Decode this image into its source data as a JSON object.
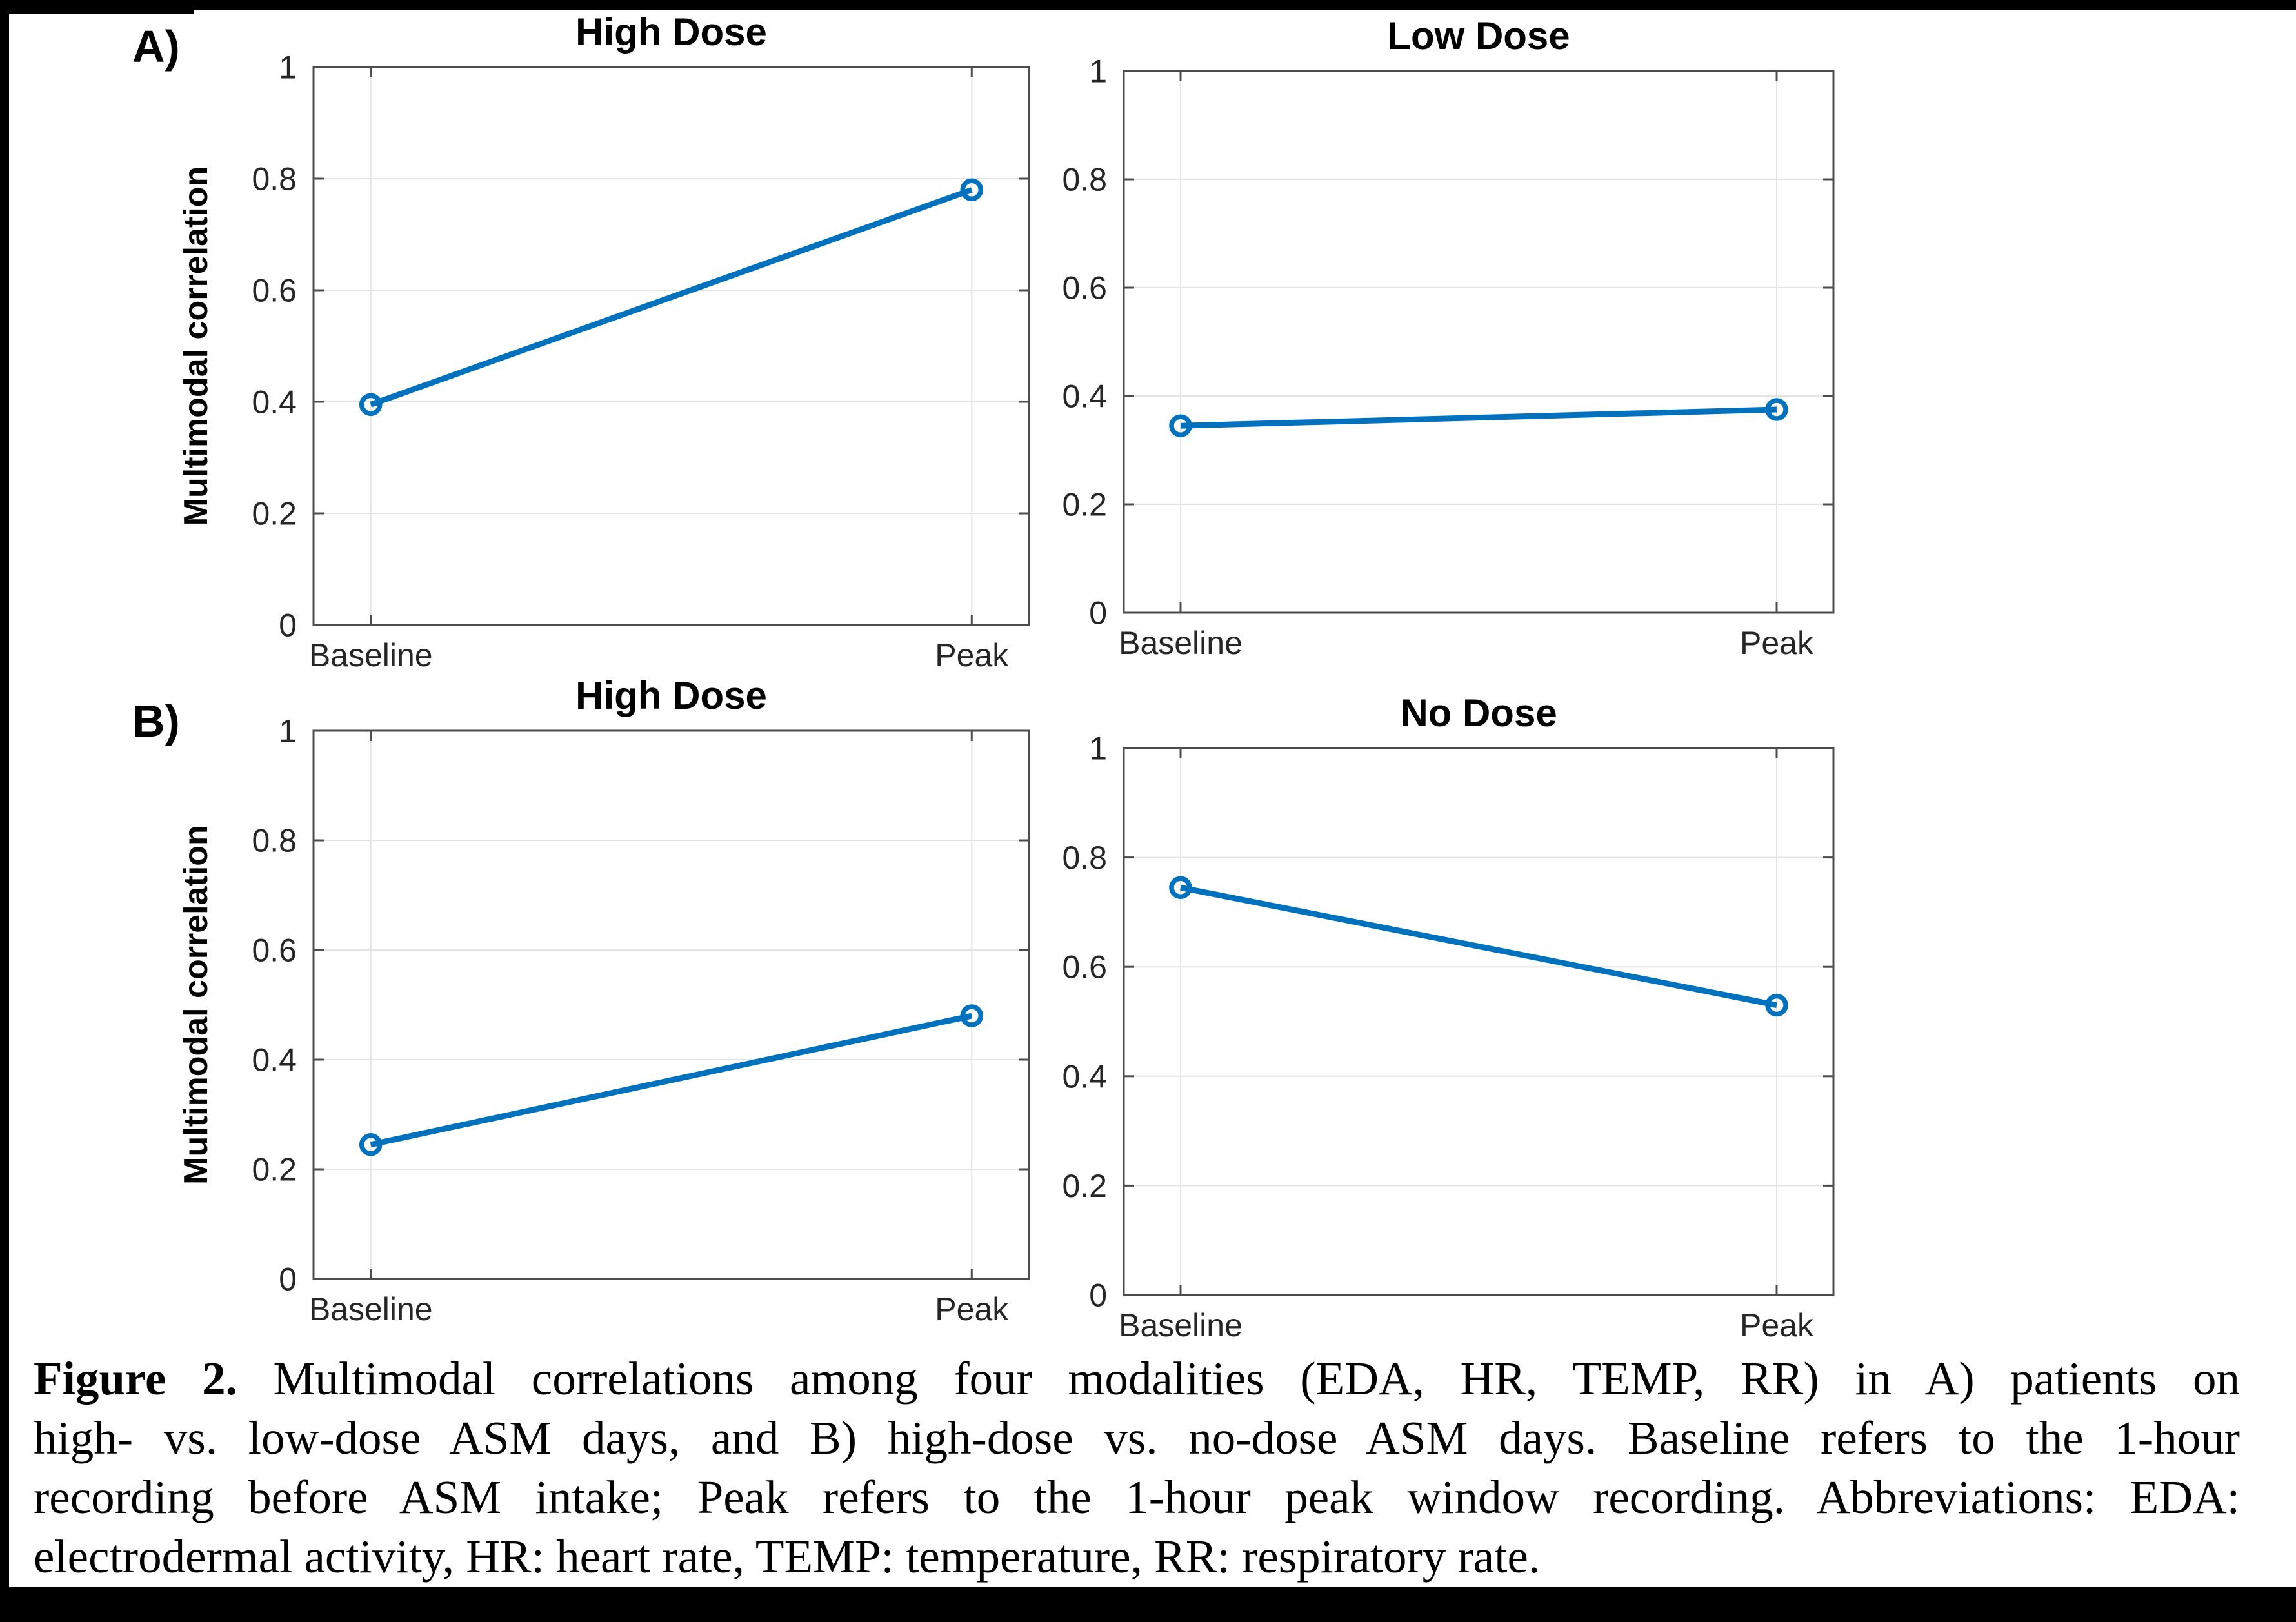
{
  "page": {
    "panel_a_label": "A)",
    "panel_b_label": "B)"
  },
  "caption": {
    "bold_prefix": "Figure 2.",
    "line1_rest": " Multimodal correlations among four modalities (EDA, HR, TEMP, RR) in A) patients on",
    "line2": "high- vs. low-dose ASM days, and B) high-dose vs. no-dose ASM days. Baseline refers to the 1-hour",
    "line3": "recording before ASM intake; Peak refers to the 1-hour peak window recording. Abbreviations: EDA:",
    "line4": "electrodermal activity, HR: heart rate, TEMP: temperature, RR: respiratory rate."
  },
  "colors": {
    "line": "#0072BD",
    "grid": "#e3e3e3",
    "axis": "#4d4d4d",
    "tick_text": "#262626",
    "title_text": "#000000"
  },
  "chart_data": [
    {
      "type": "line",
      "panel": "A",
      "title": "High Dose",
      "categories": [
        "Baseline",
        "Peak"
      ],
      "values": [
        0.395,
        0.78
      ],
      "ylabel": "Multimodal correlation",
      "xlabel": "",
      "ylim": [
        0,
        1
      ],
      "yticks": [
        0,
        0.2,
        0.4,
        0.6,
        0.8,
        1
      ],
      "ytick_labels": [
        "0",
        "0.2",
        "0.4",
        "0.6",
        "0.8",
        "1"
      ],
      "grid": true,
      "legend": null,
      "marker": "open-circle"
    },
    {
      "type": "line",
      "panel": "A",
      "title": "Low Dose",
      "categories": [
        "Baseline",
        "Peak"
      ],
      "values": [
        0.345,
        0.375
      ],
      "ylabel": null,
      "xlabel": "",
      "ylim": [
        0,
        1
      ],
      "yticks": [
        0,
        0.2,
        0.4,
        0.6,
        0.8,
        1
      ],
      "ytick_labels": [
        "0",
        "0.2",
        "0.4",
        "0.6",
        "0.8",
        "1"
      ],
      "grid": true,
      "legend": null,
      "marker": "open-circle"
    },
    {
      "type": "line",
      "panel": "B",
      "title": "High Dose",
      "categories": [
        "Baseline",
        "Peak"
      ],
      "values": [
        0.245,
        0.48
      ],
      "ylabel": "Multimodal correlation",
      "xlabel": "",
      "ylim": [
        0,
        1
      ],
      "yticks": [
        0,
        0.2,
        0.4,
        0.6,
        0.8,
        1
      ],
      "ytick_labels": [
        "0",
        "0.2",
        "0.4",
        "0.6",
        "0.8",
        "1"
      ],
      "grid": true,
      "legend": null,
      "marker": "open-circle"
    },
    {
      "type": "line",
      "panel": "B",
      "title": "No Dose",
      "categories": [
        "Baseline",
        "Peak"
      ],
      "values": [
        0.745,
        0.53
      ],
      "ylabel": null,
      "xlabel": "",
      "ylim": [
        0,
        1
      ],
      "yticks": [
        0,
        0.2,
        0.4,
        0.6,
        0.8,
        1
      ],
      "ytick_labels": [
        "0",
        "0.2",
        "0.4",
        "0.6",
        "0.8",
        "1"
      ],
      "grid": true,
      "legend": null,
      "marker": "open-circle"
    }
  ]
}
